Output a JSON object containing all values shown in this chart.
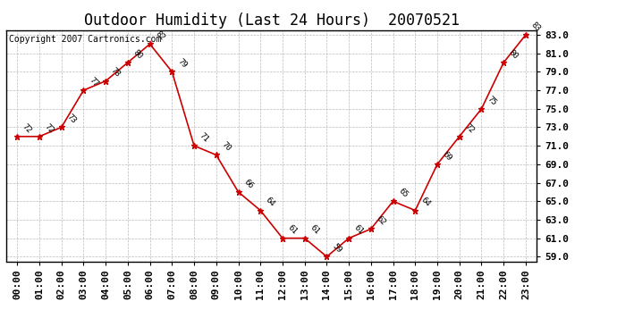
{
  "title": "Outdoor Humidity (Last 24 Hours)  20070521",
  "copyright": "Copyright 2007 Cartronics.com",
  "x_labels": [
    "00:00",
    "01:00",
    "02:00",
    "03:00",
    "04:00",
    "05:00",
    "06:00",
    "07:00",
    "08:00",
    "09:00",
    "10:00",
    "11:00",
    "12:00",
    "13:00",
    "14:00",
    "15:00",
    "16:00",
    "17:00",
    "18:00",
    "19:00",
    "20:00",
    "21:00",
    "22:00",
    "23:00"
  ],
  "x_values": [
    0,
    1,
    2,
    3,
    4,
    5,
    6,
    7,
    8,
    9,
    10,
    11,
    12,
    13,
    14,
    15,
    16,
    17,
    18,
    19,
    20,
    21,
    22,
    23
  ],
  "y_values": [
    72,
    72,
    73,
    77,
    78,
    80,
    82,
    79,
    71,
    70,
    66,
    64,
    61,
    61,
    59,
    61,
    62,
    65,
    64,
    69,
    72,
    75,
    80,
    83
  ],
  "point_labels": [
    "72",
    "72",
    "73",
    "77",
    "78",
    "80",
    "82",
    "79",
    "71",
    "70",
    "66",
    "64",
    "61",
    "61",
    "59",
    "61",
    "62",
    "65",
    "64",
    "69",
    "72",
    "75",
    "80",
    "83"
  ],
  "ylim_min": 58.5,
  "ylim_max": 83.5,
  "ytick_min": 59.0,
  "ytick_max": 83.0,
  "ytick_step": 2.0,
  "line_color": "#cc0000",
  "marker": "*",
  "marker_color": "#cc0000",
  "marker_size": 5,
  "bg_color": "#ffffff",
  "plot_bg_color": "#ffffff",
  "grid_color": "#bbbbbb",
  "title_fontsize": 12,
  "label_fontsize": 6.5,
  "tick_fontsize": 8,
  "copyright_fontsize": 7
}
